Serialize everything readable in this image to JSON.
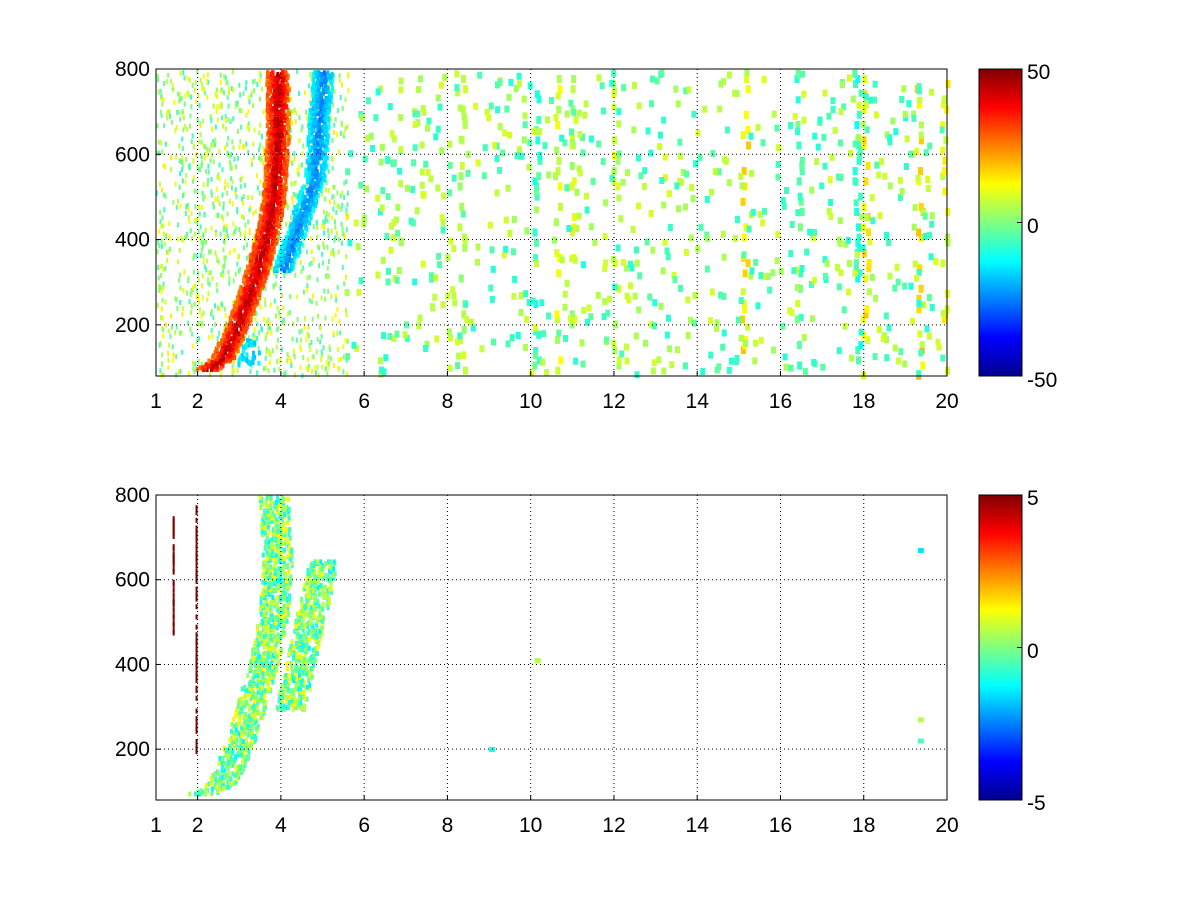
{
  "figure": {
    "background": "#ffffff",
    "grid_color": "#000000"
  },
  "colormap": "jet",
  "chart_data": [
    {
      "type": "heatmap",
      "title": "",
      "xlabel": "",
      "ylabel": "",
      "xlim": [
        1,
        20
      ],
      "ylim": [
        80,
        800
      ],
      "grid": true,
      "xticks": [
        1,
        2,
        4,
        6,
        8,
        10,
        12,
        14,
        16,
        18,
        20
      ],
      "xtick_labels": [
        "1",
        "2",
        "4",
        "6",
        "8",
        "10",
        "12",
        "14",
        "16",
        "18",
        "20"
      ],
      "yticks": [
        200,
        400,
        600,
        800
      ],
      "ytick_labels": [
        "200",
        "400",
        "600",
        "800"
      ],
      "colorbar": {
        "min": -50,
        "max": 50,
        "ticks": [
          50,
          0,
          -50
        ],
        "tick_labels": [
          "50",
          "0",
          "-50"
        ]
      },
      "features": {
        "positive_ridge": {
          "value": 45,
          "points": [
            [
              2.2,
              100
            ],
            [
              2.6,
              130
            ],
            [
              3.0,
              220
            ],
            [
              3.3,
              300
            ],
            [
              3.6,
              400
            ],
            [
              3.8,
              500
            ],
            [
              3.9,
              650
            ],
            [
              3.9,
              800
            ]
          ]
        },
        "negative_ridge": {
          "value": -25,
          "points": [
            [
              4.0,
              330
            ],
            [
              4.2,
              380
            ],
            [
              4.5,
              470
            ],
            [
              4.8,
              550
            ],
            [
              4.9,
              700
            ],
            [
              5.0,
              800
            ]
          ]
        },
        "weak_blob": {
          "value": -15,
          "x": 3.2,
          "y": 140
        },
        "scatter_columns": [
          {
            "x": 8.3,
            "value": 5
          },
          {
            "x": 10.1,
            "value": -6
          },
          {
            "x": 10.6,
            "value": 8
          },
          {
            "x": 11.0,
            "value": 6
          },
          {
            "x": 12.0,
            "value": 8
          },
          {
            "x": 15.1,
            "value": 14
          },
          {
            "x": 16.4,
            "value": -5
          },
          {
            "x": 17.8,
            "value": -7
          },
          {
            "x": 18.0,
            "value": 14
          },
          {
            "x": 19.3,
            "value": 16
          },
          {
            "x": 19.9,
            "value": 10
          }
        ]
      }
    },
    {
      "type": "heatmap",
      "title": "",
      "xlabel": "",
      "ylabel": "",
      "xlim": [
        1,
        20
      ],
      "ylim": [
        80,
        800
      ],
      "grid": true,
      "xticks": [
        1,
        2,
        4,
        6,
        8,
        10,
        12,
        14,
        16,
        18,
        20
      ],
      "xtick_labels": [
        "1",
        "2",
        "4",
        "6",
        "8",
        "10",
        "12",
        "14",
        "16",
        "18",
        "20"
      ],
      "yticks": [
        200,
        400,
        600,
        800
      ],
      "ytick_labels": [
        "200",
        "400",
        "600",
        "800"
      ],
      "colorbar": {
        "min": -5,
        "max": 5,
        "ticks": [
          5,
          0,
          -5
        ],
        "tick_labels": [
          "5",
          "0",
          "-5"
        ]
      },
      "features": {
        "main_band": {
          "value": 0,
          "points": [
            [
              2.1,
              100
            ],
            [
              2.6,
              130
            ],
            [
              3.0,
              220
            ],
            [
              3.3,
              320
            ],
            [
              3.6,
              420
            ],
            [
              3.8,
              520
            ],
            [
              3.9,
              650
            ],
            [
              3.8,
              800
            ]
          ]
        },
        "side_band": {
          "value": 0,
          "points": [
            [
              4.2,
              300
            ],
            [
              4.4,
              380
            ],
            [
              4.6,
              480
            ],
            [
              4.8,
              560
            ],
            [
              5.0,
              650
            ]
          ]
        },
        "isolated_points": [
          {
            "x": 9.0,
            "y": 205,
            "value": -1
          },
          {
            "x": 10.1,
            "y": 415,
            "value": 0.5
          },
          {
            "x": 19.3,
            "y": 675,
            "value": -1.5
          },
          {
            "x": 19.3,
            "y": 275,
            "value": 0.5
          },
          {
            "x": 19.3,
            "y": 225,
            "value": -0.5
          }
        ],
        "streaks": [
          {
            "x": 1.4,
            "y_range": [
              480,
              760
            ],
            "value": 5
          },
          {
            "x": 1.95,
            "y_range": [
              200,
              780
            ],
            "value": 5
          }
        ]
      }
    }
  ]
}
